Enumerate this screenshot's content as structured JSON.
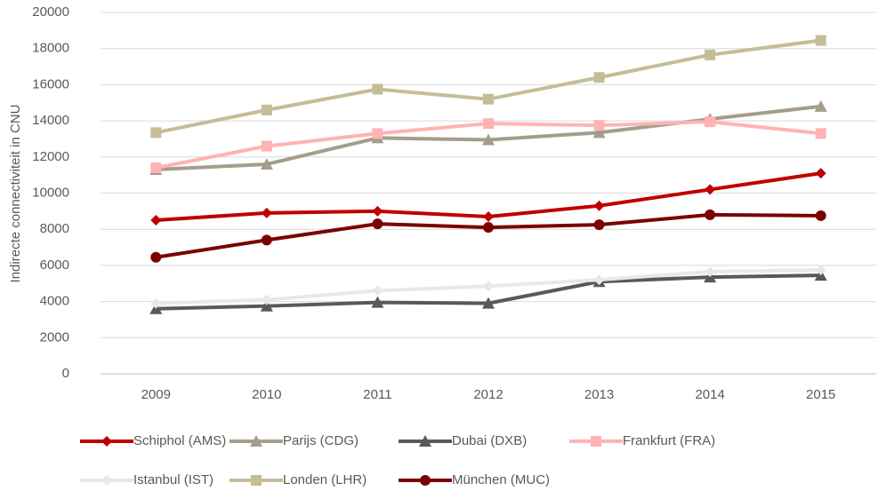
{
  "chart_data": {
    "type": "line",
    "y_label": "Indirecte connectiviteit in CNU",
    "categories": [
      "2009",
      "2010",
      "2011",
      "2012",
      "2013",
      "2014",
      "2015"
    ],
    "ylim": [
      0,
      20000
    ],
    "yticks": [
      0,
      2000,
      4000,
      6000,
      8000,
      10000,
      12000,
      14000,
      16000,
      18000,
      20000
    ],
    "grid": true,
    "legend": "bottom",
    "series": [
      {
        "name": "Schiphol (AMS)",
        "color": "#c00000",
        "marker": "diamond",
        "values": [
          8500,
          8900,
          9000,
          8700,
          9300,
          10200,
          11100
        ]
      },
      {
        "name": "Parijs (CDG)",
        "color": "#a59d8c",
        "marker": "triangle",
        "values": [
          11300,
          11600,
          13050,
          12950,
          13350,
          14100,
          14800
        ]
      },
      {
        "name": "Dubai (DXB)",
        "color": "#595959",
        "marker": "triangle",
        "values": [
          3600,
          3750,
          3950,
          3900,
          5100,
          5350,
          5450
        ]
      },
      {
        "name": "Frankfurt (FRA)",
        "color": "#ffb3b3",
        "marker": "square",
        "values": [
          11400,
          12600,
          13300,
          13850,
          13750,
          13950,
          13300
        ]
      },
      {
        "name": "Istanbul (IST)",
        "color": "#e8e8e4",
        "marker": "diamond",
        "values": [
          3900,
          4100,
          4600,
          4850,
          5200,
          5650,
          5750
        ]
      },
      {
        "name": "Londen (LHR)",
        "color": "#c4bd97",
        "marker": "square",
        "values": [
          13350,
          14600,
          15750,
          15200,
          16400,
          17650,
          18450
        ]
      },
      {
        "name": "München (MUC)",
        "color": "#7b0000",
        "marker": "circle",
        "values": [
          6450,
          7400,
          8300,
          8100,
          8250,
          8800,
          8750
        ]
      }
    ]
  }
}
